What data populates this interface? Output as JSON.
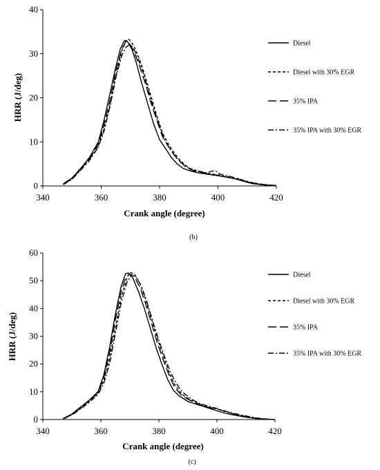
{
  "chart_data": [
    {
      "type": "line",
      "caption": "(b)",
      "xlabel": "Crank angle (degree)",
      "ylabel": "HRR (J/deg)",
      "xlim": [
        340,
        420
      ],
      "ylim": [
        0,
        40
      ],
      "xticks": [
        "340",
        "360",
        "380",
        "400",
        "420"
      ],
      "yticks": [
        "0",
        "10",
        "20",
        "30",
        "40"
      ],
      "grid": false,
      "legend_position": "right",
      "series": [
        {
          "name": "Diesel",
          "dash": "solid",
          "x": [
            347,
            350,
            353,
            356,
            359,
            361,
            363,
            365,
            366.5,
            368,
            369,
            370.5,
            372,
            374,
            376,
            378,
            380,
            382,
            384,
            386,
            388,
            390,
            393,
            396,
            400,
            403,
            406,
            409,
            412,
            416,
            420
          ],
          "y": [
            0.5,
            1.8,
            4,
            6.5,
            10,
            15,
            21,
            27,
            31,
            33,
            32.8,
            31,
            28,
            23,
            18.5,
            14,
            10.5,
            8.5,
            6.5,
            5,
            4,
            3.5,
            3,
            2.7,
            2.3,
            2,
            1.6,
            1,
            0.5,
            0.2,
            0.1
          ]
        },
        {
          "name": "Diesel with 30% EGR",
          "dash": "4,3",
          "x": [
            347,
            350,
            353,
            356,
            359,
            361,
            363,
            365,
            367,
            368.5,
            369.5,
            371,
            373,
            375,
            377,
            379,
            381,
            383,
            385,
            387,
            389,
            391,
            394,
            397,
            400,
            403,
            406,
            409,
            412,
            416,
            420
          ],
          "y": [
            0.4,
            1.6,
            3.8,
            6,
            9,
            13,
            18.5,
            25,
            30.5,
            33,
            33.3,
            32,
            29,
            25,
            20.5,
            16,
            12,
            9.5,
            7.5,
            5.8,
            4.6,
            3.8,
            3.2,
            2.8,
            2.5,
            2.1,
            1.8,
            1.2,
            0.7,
            0.3,
            0.1
          ]
        },
        {
          "name": "35% IPA",
          "dash": "12,5",
          "x": [
            347,
            350,
            353,
            356,
            359,
            361,
            363,
            365,
            367,
            368.5,
            369.5,
            371,
            373,
            375,
            377,
            379,
            381,
            383,
            385,
            387,
            389,
            391,
            394,
            397,
            400,
            403,
            406,
            409,
            412,
            416,
            420
          ],
          "y": [
            0.4,
            1.7,
            3.9,
            6.2,
            9.5,
            14,
            19.5,
            26,
            31,
            32.8,
            32.5,
            30.8,
            27.5,
            23.5,
            19,
            15,
            11.2,
            9,
            7,
            5.5,
            4.3,
            3.6,
            3,
            2.7,
            2.4,
            2,
            1.6,
            1.1,
            0.6,
            0.2,
            0.1
          ]
        },
        {
          "name": "35% IPA with 30% EGR",
          "dash": "8,3,2,3",
          "x": [
            347,
            350,
            353,
            356,
            359,
            361,
            363,
            365,
            367,
            368.5,
            369.5,
            370.5,
            372,
            374,
            376,
            378,
            380,
            382,
            384,
            386,
            388,
            390,
            393,
            396,
            399,
            401,
            404,
            407,
            410,
            414,
            420
          ],
          "y": [
            0.3,
            1.5,
            3.6,
            5.8,
            8.8,
            12.5,
            18,
            24.5,
            29.5,
            31.5,
            32,
            31.8,
            30,
            26.5,
            22,
            17.5,
            13.5,
            10,
            8,
            6.2,
            5,
            4,
            3.4,
            3,
            3.5,
            2.6,
            2.2,
            1.6,
            1,
            0.4,
            0.1
          ]
        }
      ]
    },
    {
      "type": "line",
      "caption": "(c)",
      "xlabel": "Crank angle (degree)",
      "ylabel": "HRR (J/deg)",
      "xlim": [
        340,
        420
      ],
      "ylim": [
        0,
        60
      ],
      "xticks": [
        "340",
        "360",
        "380",
        "400",
        "420"
      ],
      "yticks": [
        "0",
        "10",
        "20",
        "30",
        "40",
        "50",
        "60"
      ],
      "grid": false,
      "legend_position": "right",
      "series": [
        {
          "name": "Diesel",
          "dash": "solid",
          "x": [
            347,
            350,
            353,
            356,
            359,
            361,
            363,
            365,
            367,
            368.5,
            369.5,
            371,
            373,
            375,
            377,
            379,
            381,
            383,
            385,
            387,
            390,
            393,
            396,
            399,
            402,
            405,
            408,
            411,
            414,
            417,
            420
          ],
          "y": [
            0.3,
            2,
            4.5,
            7,
            10,
            16,
            26,
            38,
            48,
            52.5,
            52.8,
            51,
            46,
            40,
            33,
            26,
            20,
            14.5,
            10.5,
            8.5,
            6.5,
            5.5,
            4.5,
            3.5,
            2.5,
            1.8,
            1.2,
            0.7,
            0.3,
            0.1,
            0
          ]
        },
        {
          "name": "Diesel with 30% EGR",
          "dash": "4,3",
          "x": [
            347,
            350,
            353,
            356,
            359,
            361,
            363,
            365,
            367,
            369,
            370,
            371.5,
            373.5,
            375.5,
            377.5,
            379.5,
            381.5,
            383.5,
            385.5,
            388,
            391,
            394,
            397,
            400,
            403,
            406,
            409,
            412,
            415,
            418,
            420
          ],
          "y": [
            0.3,
            1.8,
            4,
            6.5,
            9.5,
            14,
            22,
            33,
            44,
            51,
            53,
            52.5,
            49,
            43,
            36,
            29,
            23,
            17,
            12.5,
            9,
            7,
            5.5,
            4.5,
            3.8,
            2.8,
            2,
            1.3,
            0.7,
            0.3,
            0.1,
            0
          ]
        },
        {
          "name": "35% IPA",
          "dash": "12,5",
          "x": [
            347,
            350,
            353,
            356,
            359,
            361,
            363,
            365,
            367,
            368.5,
            370,
            371.5,
            373.5,
            375.5,
            377.5,
            379.5,
            381.5,
            383.5,
            385.5,
            388,
            391,
            394,
            397,
            400,
            403,
            406,
            409,
            412,
            415,
            418,
            420
          ],
          "y": [
            0.3,
            1.9,
            4.2,
            6.8,
            9.8,
            15,
            24,
            36,
            46,
            51,
            52.5,
            51.5,
            47.5,
            41.5,
            34.5,
            27.5,
            21.5,
            16,
            11.5,
            8.5,
            6.8,
            5.4,
            4.4,
            3.8,
            2.8,
            2,
            1.3,
            0.7,
            0.3,
            0.1,
            0
          ]
        },
        {
          "name": "35% IPA with 30% EGR",
          "dash": "8,3,2,3",
          "x": [
            347,
            350,
            353,
            356,
            359,
            361,
            363,
            365,
            367,
            369,
            370.5,
            372,
            374,
            376,
            378,
            380,
            382,
            384,
            386,
            388,
            391,
            394,
            397,
            400,
            403,
            406,
            409,
            412,
            415,
            418,
            420
          ],
          "y": [
            0.2,
            1.6,
            3.8,
            6.2,
            9,
            13,
            20,
            31,
            42,
            49.5,
            52,
            51.5,
            48,
            42,
            35,
            28.5,
            22.5,
            17,
            13,
            10,
            7.5,
            5.8,
            4.8,
            4,
            3,
            2.2,
            1.5,
            0.9,
            0.4,
            0.1,
            0
          ]
        }
      ]
    }
  ]
}
